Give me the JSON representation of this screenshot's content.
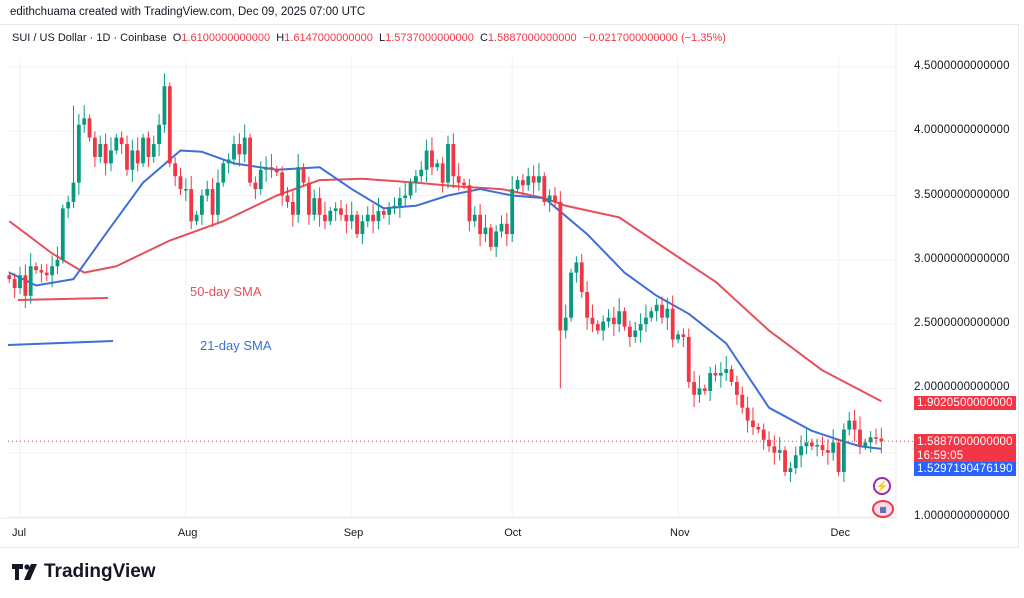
{
  "header": {
    "credit": "edithchuama created with TradingView.com, Dec 09, 2025 07:00 UTC",
    "symbol": "SUI / US Dollar · 1D · Coinbase",
    "open_label": "O",
    "open": "1.6100000000000",
    "high_label": "H",
    "high": "1.6147000000000",
    "low_label": "L",
    "low": "1.5737000000000",
    "close_label": "C",
    "close": "1.5887000000000",
    "change": "−0.0217000000000 (−1.35%)"
  },
  "price_tags": {
    "sma50": "1.9020500000000",
    "last": "1.5887000000000",
    "countdown": "16:59:05",
    "sma21": "1.5297190476190"
  },
  "annotations": {
    "sma50": "50-day SMA",
    "sma21": "21-day SMA"
  },
  "brand": "TradingView",
  "colors": {
    "up": "#089981",
    "down": "#f23645",
    "sma50": "#e5505a",
    "sma21": "#3d6fd6"
  },
  "chart_data": {
    "type": "candlestick",
    "title": "SUI / US Dollar · 1D · Coinbase",
    "start_date": "2025-06-29",
    "end_date": "2025-12-09",
    "ylim": [
      1.0,
      4.5
    ],
    "y_ticks": [
      "4.5000000000000",
      "4.0000000000000",
      "3.5000000000000",
      "3.0000000000000",
      "2.5000000000000",
      "2.0000000000000",
      "1.0000000000000"
    ],
    "y_tick_values": [
      4.5,
      4.0,
      3.5,
      3.0,
      2.5,
      2.0,
      1.0
    ],
    "x_ticks": [
      {
        "label": "Jul",
        "index": 2
      },
      {
        "label": "Aug",
        "index": 33
      },
      {
        "label": "Sep",
        "index": 64
      },
      {
        "label": "Oct",
        "index": 94
      },
      {
        "label": "Nov",
        "index": 125
      },
      {
        "label": "Dec",
        "index": 155
      }
    ],
    "first_open": 2.88,
    "closes": [
      2.85,
      2.78,
      2.88,
      2.72,
      2.95,
      2.92,
      2.9,
      2.88,
      2.95,
      3.0,
      3.4,
      3.45,
      3.6,
      4.05,
      4.1,
      3.95,
      3.8,
      3.9,
      3.75,
      3.85,
      3.95,
      3.9,
      3.7,
      3.85,
      3.75,
      3.95,
      3.8,
      3.9,
      4.05,
      4.35,
      3.75,
      3.65,
      3.55,
      3.55,
      3.3,
      3.35,
      3.5,
      3.55,
      3.35,
      3.6,
      3.75,
      3.78,
      3.9,
      3.82,
      3.95,
      3.6,
      3.55,
      3.7,
      3.72,
      3.7,
      3.68,
      3.5,
      3.45,
      3.35,
      3.72,
      3.6,
      3.35,
      3.48,
      3.35,
      3.3,
      3.38,
      3.4,
      3.35,
      3.3,
      3.35,
      3.2,
      3.3,
      3.35,
      3.3,
      3.38,
      3.35,
      3.4,
      3.42,
      3.48,
      3.5,
      3.6,
      3.65,
      3.7,
      3.85,
      3.72,
      3.75,
      3.6,
      3.9,
      3.65,
      3.6,
      3.58,
      3.3,
      3.35,
      3.2,
      3.25,
      3.1,
      3.22,
      3.28,
      3.2,
      3.55,
      3.62,
      3.58,
      3.65,
      3.6,
      3.65,
      3.45,
      3.5,
      3.45,
      2.45,
      2.55,
      2.9,
      2.98,
      2.75,
      2.55,
      2.5,
      2.45,
      2.52,
      2.55,
      2.5,
      2.6,
      2.48,
      2.4,
      2.45,
      2.5,
      2.55,
      2.6,
      2.65,
      2.55,
      2.62,
      2.38,
      2.42,
      2.4,
      2.05,
      1.95,
      2.0,
      1.98,
      2.12,
      2.1,
      2.12,
      2.15,
      2.05,
      1.95,
      1.85,
      1.75,
      1.7,
      1.68,
      1.6,
      1.55,
      1.5,
      1.52,
      1.35,
      1.38,
      1.48,
      1.55,
      1.58,
      1.55,
      1.56,
      1.52,
      1.5,
      1.58,
      1.35,
      1.68,
      1.75,
      1.68,
      1.55,
      1.58,
      1.62,
      1.61,
      1.5887
    ],
    "wick_overrides": [
      {
        "index": 29,
        "high": 4.45
      },
      {
        "index": 103,
        "low": 2.0
      },
      {
        "index": 12,
        "high": 4.2
      }
    ],
    "sma21": [
      [
        0,
        2.9
      ],
      [
        5,
        2.8
      ],
      [
        12,
        2.85
      ],
      [
        18,
        3.2
      ],
      [
        25,
        3.6
      ],
      [
        32,
        3.85
      ],
      [
        36,
        3.84
      ],
      [
        42,
        3.75
      ],
      [
        50,
        3.7
      ],
      [
        58,
        3.72
      ],
      [
        64,
        3.55
      ],
      [
        70,
        3.4
      ],
      [
        76,
        3.42
      ],
      [
        82,
        3.5
      ],
      [
        88,
        3.55
      ],
      [
        94,
        3.5
      ],
      [
        100,
        3.48
      ],
      [
        108,
        3.2
      ],
      [
        115,
        2.9
      ],
      [
        121,
        2.72
      ],
      [
        127,
        2.58
      ],
      [
        134,
        2.35
      ],
      [
        142,
        1.85
      ],
      [
        150,
        1.67
      ],
      [
        155,
        1.6
      ],
      [
        159,
        1.55
      ],
      [
        163,
        1.53
      ]
    ],
    "sma50": [
      [
        0,
        3.3
      ],
      [
        8,
        3.05
      ],
      [
        14,
        2.9
      ],
      [
        20,
        2.95
      ],
      [
        30,
        3.15
      ],
      [
        40,
        3.3
      ],
      [
        50,
        3.5
      ],
      [
        58,
        3.62
      ],
      [
        66,
        3.63
      ],
      [
        76,
        3.6
      ],
      [
        84,
        3.57
      ],
      [
        92,
        3.55
      ],
      [
        100,
        3.48
      ],
      [
        104,
        3.42
      ],
      [
        114,
        3.33
      ],
      [
        124,
        3.05
      ],
      [
        132,
        2.83
      ],
      [
        142,
        2.45
      ],
      [
        152,
        2.14
      ],
      [
        163,
        1.9
      ]
    ],
    "last_price": 1.5887
  }
}
